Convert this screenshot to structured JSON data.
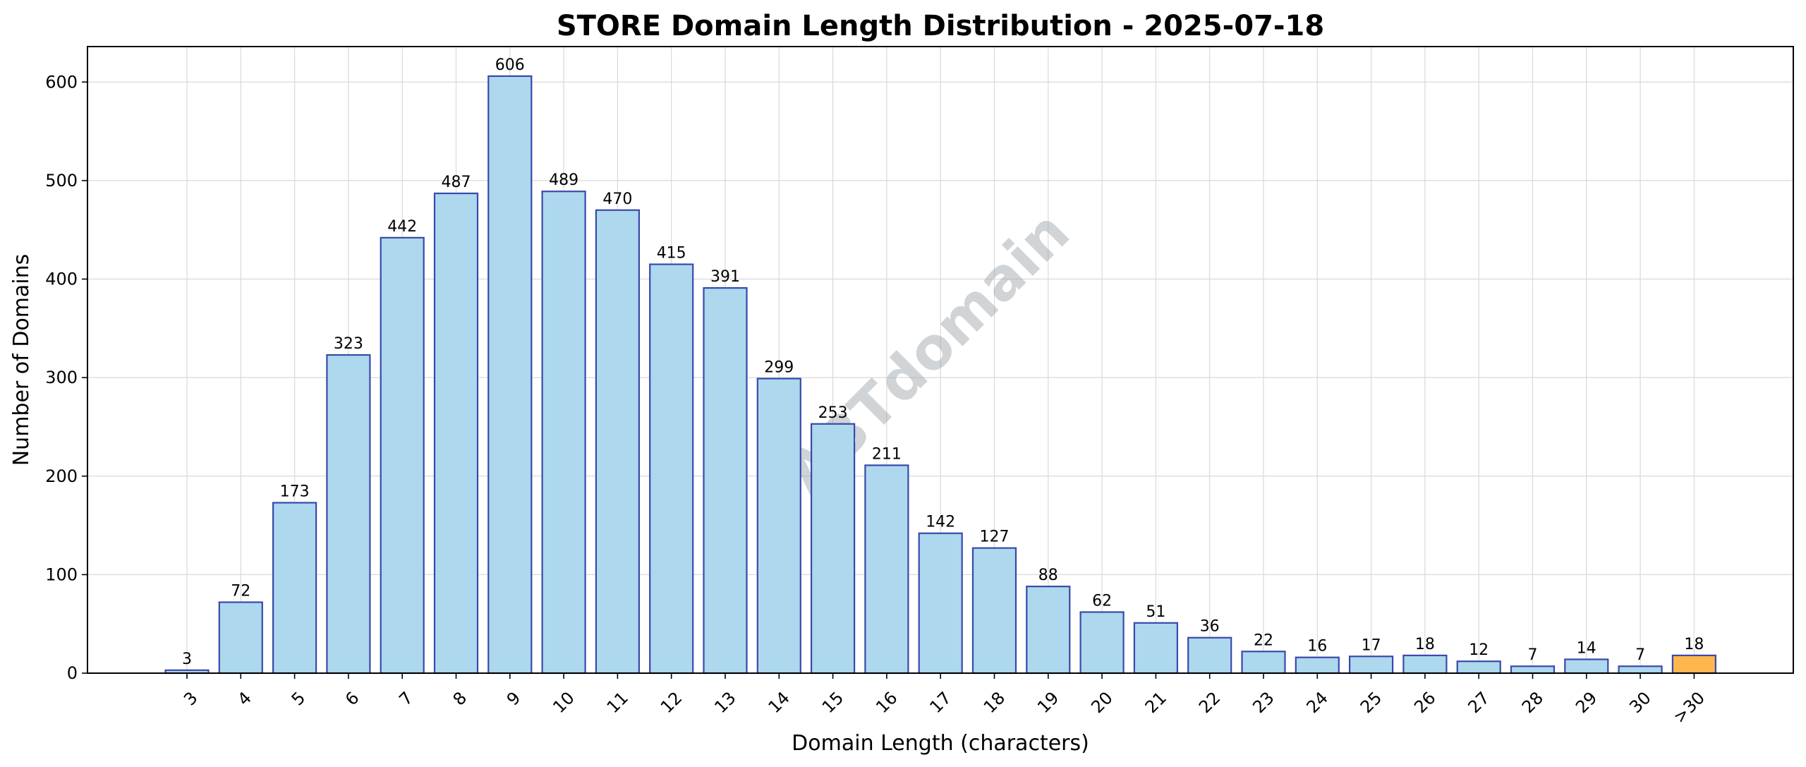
{
  "chart_data": {
    "type": "bar",
    "title": "STORE Domain Length Distribution - 2025-07-18",
    "xlabel": "Domain Length (characters)",
    "ylabel": "Number of Domains",
    "watermark": "ABTdomain",
    "categories": [
      "3",
      "4",
      "5",
      "6",
      "7",
      "8",
      "9",
      "10",
      "11",
      "12",
      "13",
      "14",
      "15",
      "16",
      "17",
      "18",
      "19",
      "20",
      "21",
      "22",
      "23",
      "24",
      "25",
      "26",
      "27",
      "28",
      "29",
      "30",
      ">30"
    ],
    "values": [
      3,
      72,
      173,
      323,
      442,
      487,
      606,
      489,
      470,
      415,
      391,
      299,
      253,
      211,
      142,
      127,
      88,
      62,
      51,
      36,
      22,
      16,
      17,
      18,
      12,
      7,
      14,
      7,
      18
    ],
    "ylim": [
      0,
      636
    ],
    "yticks": [
      0,
      100,
      200,
      300,
      400,
      500,
      600
    ],
    "grid": true,
    "colors": {
      "bar_fill": "#add8ed",
      "bar_edge": "#3949ab",
      "highlight_fill": "#ffb74d",
      "highlight_edge": "#3949ab"
    },
    "highlight_category": ">30"
  }
}
